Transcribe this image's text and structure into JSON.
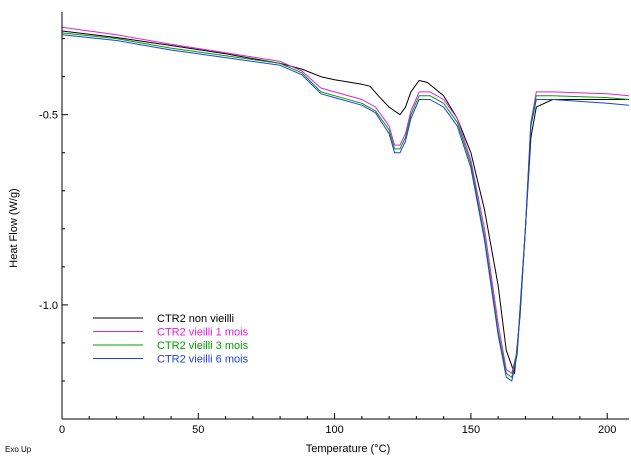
{
  "chart_data": {
    "type": "line",
    "title": "",
    "xlabel": "Temperature (°C)",
    "ylabel": "Heat Flow (W/g)",
    "xlim": [
      0,
      208
    ],
    "ylim": [
      -1.3,
      -0.23
    ],
    "xticks": [
      0,
      50,
      100,
      150,
      200
    ],
    "yticks": [
      -0.5,
      -1.0
    ],
    "ytick_labels": [
      "-0.5",
      "-1.0"
    ],
    "corner_note": "Exo Up",
    "grid": false,
    "legend_position": "bottom-left",
    "series": [
      {
        "name": "CTR2 non vieilli",
        "color": "#000000",
        "points": [
          [
            0,
            -0.28
          ],
          [
            20,
            -0.297
          ],
          [
            40,
            -0.318
          ],
          [
            60,
            -0.34
          ],
          [
            80,
            -0.365
          ],
          [
            88,
            -0.38
          ],
          [
            95,
            -0.4
          ],
          [
            100,
            -0.408
          ],
          [
            110,
            -0.42
          ],
          [
            113,
            -0.425
          ],
          [
            116,
            -0.45
          ],
          [
            120,
            -0.48
          ],
          [
            124,
            -0.5
          ],
          [
            126,
            -0.48
          ],
          [
            128,
            -0.44
          ],
          [
            131,
            -0.41
          ],
          [
            134,
            -0.415
          ],
          [
            140,
            -0.45
          ],
          [
            145,
            -0.51
          ],
          [
            150,
            -0.6
          ],
          [
            155,
            -0.75
          ],
          [
            160,
            -0.95
          ],
          [
            163,
            -1.12
          ],
          [
            166,
            -1.18
          ],
          [
            168,
            -1.03
          ],
          [
            170,
            -0.8
          ],
          [
            172,
            -0.56
          ],
          [
            174,
            -0.48
          ],
          [
            180,
            -0.46
          ],
          [
            200,
            -0.46
          ],
          [
            208,
            -0.46
          ]
        ]
      },
      {
        "name": "CTR2 vieilli 1 mois",
        "color": "#e020e0",
        "points": [
          [
            0,
            -0.27
          ],
          [
            20,
            -0.29
          ],
          [
            40,
            -0.315
          ],
          [
            60,
            -0.337
          ],
          [
            80,
            -0.36
          ],
          [
            88,
            -0.385
          ],
          [
            95,
            -0.43
          ],
          [
            100,
            -0.44
          ],
          [
            110,
            -0.46
          ],
          [
            115,
            -0.48
          ],
          [
            120,
            -0.53
          ],
          [
            122,
            -0.58
          ],
          [
            124,
            -0.58
          ],
          [
            126,
            -0.55
          ],
          [
            128,
            -0.49
          ],
          [
            131,
            -0.44
          ],
          [
            135,
            -0.44
          ],
          [
            140,
            -0.46
          ],
          [
            145,
            -0.51
          ],
          [
            150,
            -0.62
          ],
          [
            155,
            -0.8
          ],
          [
            160,
            -1.05
          ],
          [
            163,
            -1.17
          ],
          [
            165,
            -1.18
          ],
          [
            167,
            -1.12
          ],
          [
            170,
            -0.8
          ],
          [
            172,
            -0.52
          ],
          [
            174,
            -0.44
          ],
          [
            180,
            -0.44
          ],
          [
            200,
            -0.445
          ],
          [
            208,
            -0.45
          ]
        ]
      },
      {
        "name": "CTR2 vieilli 3 mois",
        "color": "#00a000",
        "points": [
          [
            0,
            -0.285
          ],
          [
            20,
            -0.3
          ],
          [
            40,
            -0.325
          ],
          [
            60,
            -0.345
          ],
          [
            80,
            -0.365
          ],
          [
            88,
            -0.39
          ],
          [
            95,
            -0.44
          ],
          [
            100,
            -0.45
          ],
          [
            110,
            -0.47
          ],
          [
            115,
            -0.49
          ],
          [
            120,
            -0.54
          ],
          [
            122,
            -0.59
          ],
          [
            124,
            -0.59
          ],
          [
            126,
            -0.56
          ],
          [
            128,
            -0.5
          ],
          [
            131,
            -0.45
          ],
          [
            135,
            -0.45
          ],
          [
            140,
            -0.47
          ],
          [
            145,
            -0.52
          ],
          [
            150,
            -0.63
          ],
          [
            155,
            -0.82
          ],
          [
            160,
            -1.07
          ],
          [
            163,
            -1.18
          ],
          [
            165,
            -1.19
          ],
          [
            167,
            -1.12
          ],
          [
            170,
            -0.8
          ],
          [
            172,
            -0.52
          ],
          [
            174,
            -0.45
          ],
          [
            180,
            -0.45
          ],
          [
            200,
            -0.455
          ],
          [
            208,
            -0.46
          ]
        ]
      },
      {
        "name": "CTR2 vieilli 6 mois",
        "color": "#2040e0",
        "points": [
          [
            0,
            -0.29
          ],
          [
            20,
            -0.305
          ],
          [
            40,
            -0.33
          ],
          [
            60,
            -0.35
          ],
          [
            80,
            -0.37
          ],
          [
            88,
            -0.395
          ],
          [
            95,
            -0.445
          ],
          [
            100,
            -0.455
          ],
          [
            110,
            -0.475
          ],
          [
            115,
            -0.495
          ],
          [
            120,
            -0.55
          ],
          [
            122,
            -0.6
          ],
          [
            124,
            -0.6
          ],
          [
            126,
            -0.57
          ],
          [
            128,
            -0.51
          ],
          [
            131,
            -0.46
          ],
          [
            135,
            -0.46
          ],
          [
            140,
            -0.48
          ],
          [
            145,
            -0.53
          ],
          [
            150,
            -0.64
          ],
          [
            155,
            -0.83
          ],
          [
            160,
            -1.08
          ],
          [
            163,
            -1.19
          ],
          [
            165,
            -1.2
          ],
          [
            167,
            -1.13
          ],
          [
            170,
            -0.8
          ],
          [
            172,
            -0.53
          ],
          [
            174,
            -0.46
          ],
          [
            180,
            -0.46
          ],
          [
            200,
            -0.47
          ],
          [
            208,
            -0.475
          ]
        ]
      }
    ]
  }
}
